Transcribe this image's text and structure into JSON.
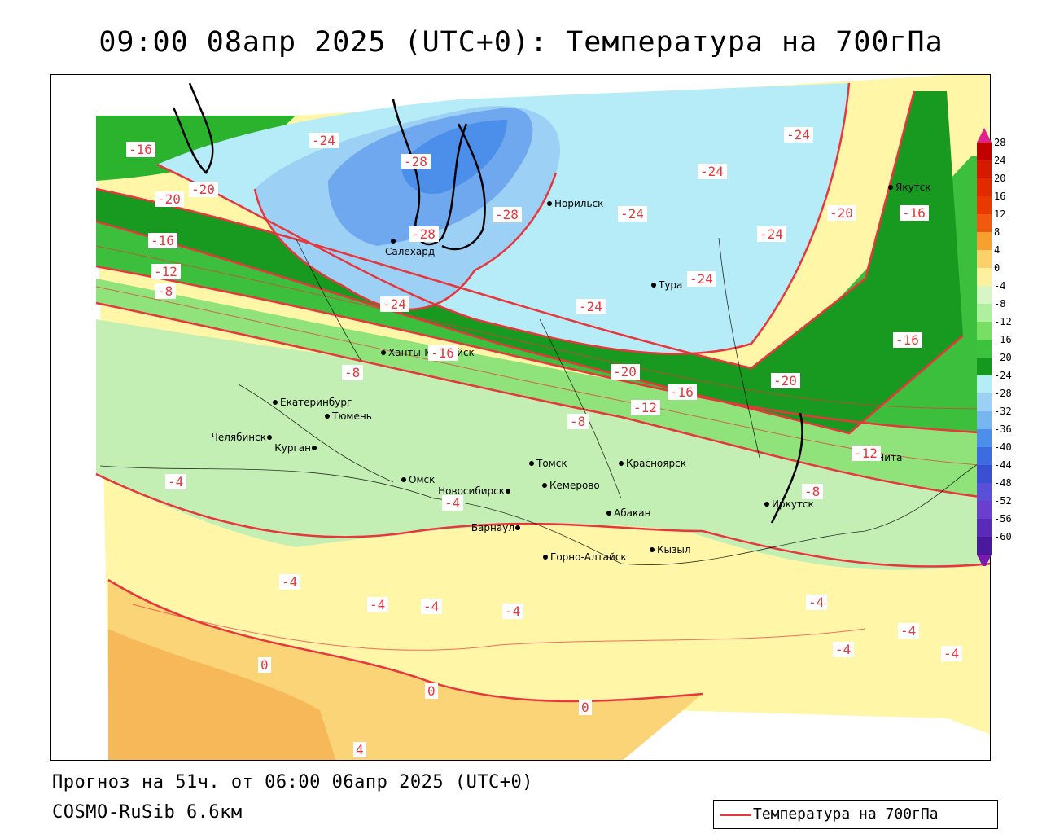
{
  "title": "09:00 08апр 2025 (UTC+0): Температура на 700гПа",
  "forecast_text": "Прогноз на 51ч. от 06:00 06апр 2025 (UTC+0)",
  "model_text": "COSMO-RuSib 6.6км",
  "legend": {
    "label": "Температура на 700гПа",
    "color": "#e8363d"
  },
  "colorbar": {
    "ticks": [
      "28",
      "24",
      "20",
      "16",
      "12",
      "8",
      "4",
      "0",
      "-4",
      "-8",
      "-12",
      "-16",
      "-20",
      "-24",
      "-28",
      "-32",
      "-36",
      "-40",
      "-44",
      "-48",
      "-52",
      "-56",
      "-60"
    ],
    "colors": [
      "#c00000",
      "#d41a00",
      "#e02a00",
      "#e83a00",
      "#f05a10",
      "#f7a030",
      "#fcd06a",
      "#fff0a0",
      "#d8f5c8",
      "#b0efa0",
      "#78df64",
      "#3cc23c",
      "#14991e",
      "#b6ecf7",
      "#9cd0f4",
      "#78b6f0",
      "#4c8fea",
      "#3f6be0",
      "#3a4fd4",
      "#5a4fd8",
      "#6a3fcf",
      "#5a2bb8",
      "#4b1a9c"
    ]
  },
  "cities": [
    {
      "name": "Норильск"
    },
    {
      "name": "Якутск"
    },
    {
      "name": "Салехард"
    },
    {
      "name": "Тура"
    },
    {
      "name": "Ханты-Мансийск"
    },
    {
      "name": "Екатеринбург"
    },
    {
      "name": "Тюмень"
    },
    {
      "name": "Челябинск"
    },
    {
      "name": "Курган"
    },
    {
      "name": "Омск"
    },
    {
      "name": "Томск"
    },
    {
      "name": "Красноярск"
    },
    {
      "name": "Новосибирск"
    },
    {
      "name": "Кемерово"
    },
    {
      "name": "Абакан"
    },
    {
      "name": "Барнаул"
    },
    {
      "name": "Горно-Алтайск"
    },
    {
      "name": "Кызыл"
    },
    {
      "name": "Иркутск"
    },
    {
      "name": "Чита"
    }
  ],
  "isotherm_labels": [
    "-16",
    "-20",
    "-20",
    "-16",
    "-12",
    "-8",
    "-24",
    "-28",
    "-28",
    "-28",
    "-24",
    "-24",
    "-24",
    "-24",
    "-20",
    "-16",
    "-24",
    "-24",
    "-24",
    "-16",
    "-16",
    "-8",
    "-20",
    "-12",
    "-16",
    "-20",
    "-8",
    "-12",
    "-8",
    "-4",
    "-4",
    "-4",
    "-4",
    "-4",
    "-4",
    "-4",
    "-4",
    "-4",
    "-4",
    "0",
    "0",
    "0",
    "4"
  ]
}
